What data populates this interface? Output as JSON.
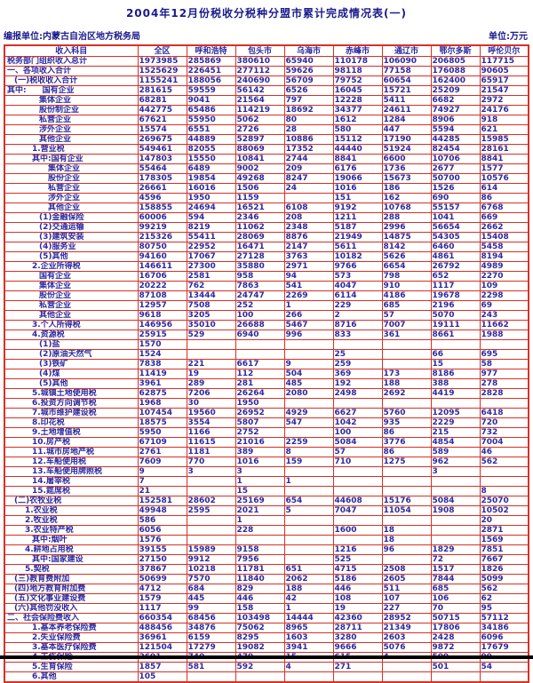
{
  "header": {
    "title": "2004年12月份税收分税种分盟市累计完成情况表(一)",
    "reporting_unit": "编报单位:内蒙古自治区地方税务局",
    "unit_note": "单位:万元"
  },
  "colors": {
    "grid_border": "#d93025",
    "text": "#2b2ba0",
    "title_text": "#1a1a8c",
    "background": "#ffffff"
  },
  "table": {
    "columns": [
      "收入科目",
      "全区",
      "呼和浩特",
      "包头市",
      "乌海市",
      "赤峰市",
      "通辽市",
      "鄂尔多斯",
      "呼伦贝尔"
    ],
    "rows": [
      {
        "i": 0,
        "t": "税务部门组织收入总计",
        "v": [
          1973985,
          285869,
          380610,
          65940,
          110178,
          106090,
          206805,
          117715
        ]
      },
      {
        "i": 0,
        "t": "一、各项收入合计",
        "v": [
          1525629,
          226451,
          277112,
          59626,
          98118,
          77158,
          176088,
          90605
        ]
      },
      {
        "i": 1,
        "t": "(一)税收收入合计",
        "v": [
          1155241,
          188056,
          240690,
          56709,
          79752,
          60654,
          162400,
          65917
        ]
      },
      {
        "i": 0,
        "t": "其中:　　国有企业",
        "v": [
          281615,
          59559,
          56142,
          6526,
          16045,
          15721,
          25209,
          21547
        ]
      },
      {
        "i": 4,
        "t": "集体企业",
        "v": [
          68281,
          9041,
          21564,
          797,
          12228,
          5411,
          6682,
          2972
        ]
      },
      {
        "i": 4,
        "t": "股份制企业",
        "v": [
          442775,
          65486,
          114219,
          18692,
          34377,
          24611,
          74927,
          24176
        ]
      },
      {
        "i": 4,
        "t": "私营企业",
        "v": [
          67621,
          55950,
          5062,
          80,
          1612,
          1284,
          8906,
          918
        ]
      },
      {
        "i": 4,
        "t": "涉外企业",
        "v": [
          15574,
          6551,
          2726,
          28,
          580,
          447,
          5594,
          621
        ]
      },
      {
        "i": 4,
        "t": "其他企业",
        "v": [
          269675,
          44889,
          52897,
          10886,
          15112,
          17190,
          44285,
          15985
        ]
      },
      {
        "i": 3,
        "t": "1.营业税",
        "v": [
          549461,
          82055,
          88069,
          17352,
          44440,
          51924,
          82454,
          28161
        ]
      },
      {
        "i": 3,
        "t": "其中:国有企业",
        "v": [
          147803,
          15550,
          10841,
          2744,
          8841,
          6600,
          10706,
          8841
        ]
      },
      {
        "i": 5,
        "t": "集体企业",
        "v": [
          55464,
          6489,
          9002,
          209,
          6176,
          1736,
          2677,
          1577
        ]
      },
      {
        "i": 5,
        "t": "股份企业",
        "v": [
          178305,
          19854,
          49268,
          8247,
          19066,
          15673,
          50700,
          10576
        ]
      },
      {
        "i": 5,
        "t": "私营企业",
        "v": [
          26661,
          16016,
          1506,
          24,
          1016,
          186,
          1526,
          614
        ]
      },
      {
        "i": 5,
        "t": "涉外企业",
        "v": [
          4596,
          1950,
          1159,
          "",
          151,
          162,
          690,
          86
        ]
      },
      {
        "i": 5,
        "t": "其他企业",
        "v": [
          158855,
          24694,
          16521,
          6108,
          9192,
          10768,
          55157,
          6768
        ]
      },
      {
        "i": 4,
        "t": "(1)金融保险",
        "v": [
          60006,
          594,
          2346,
          208,
          1211,
          288,
          1041,
          669
        ]
      },
      {
        "i": 4,
        "t": "(2)交通运输",
        "v": [
          99219,
          8219,
          11062,
          2348,
          5187,
          2996,
          56654,
          2662
        ]
      },
      {
        "i": 4,
        "t": "(3)建筑安装",
        "v": [
          215326,
          55411,
          28069,
          8876,
          21949,
          14875,
          54305,
          15408
        ]
      },
      {
        "i": 4,
        "t": "(4)服务业",
        "v": [
          80750,
          22952,
          16471,
          2147,
          5611,
          8142,
          6460,
          5458
        ]
      },
      {
        "i": 4,
        "t": "(5)其他",
        "v": [
          94160,
          17067,
          27128,
          3763,
          10182,
          5626,
          4861,
          8194
        ]
      },
      {
        "i": 3,
        "t": "2.企业所得税",
        "v": [
          146611,
          27300,
          35880,
          2971,
          9766,
          6654,
          26792,
          4989
        ]
      },
      {
        "i": 4,
        "t": "国有企业",
        "v": [
          16706,
          2581,
          958,
          94,
          573,
          798,
          652,
          2270
        ]
      },
      {
        "i": 4,
        "t": "集体企业",
        "v": [
          20222,
          762,
          7863,
          541,
          4047,
          910,
          1117,
          109
        ]
      },
      {
        "i": 4,
        "t": "股份企业",
        "v": [
          87108,
          13444,
          24747,
          2269,
          6114,
          4186,
          19678,
          2298
        ]
      },
      {
        "i": 4,
        "t": "私营企业",
        "v": [
          12957,
          7508,
          252,
          1,
          229,
          685,
          2196,
          69
        ]
      },
      {
        "i": 4,
        "t": "其他企业",
        "v": [
          9618,
          3205,
          100,
          266,
          2,
          57,
          5070,
          243
        ]
      },
      {
        "i": 3,
        "t": "3.个人所得税",
        "v": [
          146956,
          35010,
          26688,
          5467,
          8716,
          7007,
          19111,
          11662
        ]
      },
      {
        "i": 3,
        "t": "4.资源税",
        "v": [
          25915,
          529,
          6940,
          996,
          833,
          361,
          8661,
          1988
        ]
      },
      {
        "i": 4,
        "t": "(1)盐",
        "v": [
          1570,
          "",
          "",
          "",
          "",
          "",
          "",
          ""
        ]
      },
      {
        "i": 4,
        "t": "(2)原油天然气",
        "v": [
          1524,
          "",
          "",
          "",
          25,
          "",
          66,
          695
        ]
      },
      {
        "i": 4,
        "t": "(3)铁矿",
        "v": [
          7838,
          221,
          6617,
          9,
          259,
          "",
          15,
          58
        ]
      },
      {
        "i": 4,
        "t": "(4)煤",
        "v": [
          11419,
          19,
          112,
          504,
          369,
          173,
          8186,
          977
        ]
      },
      {
        "i": 4,
        "t": "(5)其他",
        "v": [
          3961,
          289,
          281,
          485,
          192,
          188,
          388,
          278
        ]
      },
      {
        "i": 3,
        "t": "5.城镇土地使用税",
        "v": [
          62875,
          7206,
          26264,
          2080,
          2498,
          2692,
          4419,
          2828
        ]
      },
      {
        "i": 3,
        "t": "6.投资方向调节税",
        "v": [
          1968,
          30,
          1950,
          "",
          "",
          "",
          "",
          ""
        ]
      },
      {
        "i": 3,
        "t": "7.城市维护建设税",
        "v": [
          107454,
          19560,
          26952,
          4929,
          6627,
          5760,
          12095,
          6418
        ]
      },
      {
        "i": 3,
        "t": "8.印花税",
        "v": [
          18575,
          3554,
          5807,
          547,
          1042,
          935,
          2229,
          720
        ]
      },
      {
        "i": 3,
        "t": "9.土地增值税",
        "v": [
          5950,
          1166,
          2752,
          "",
          100,
          86,
          215,
          732
        ]
      },
      {
        "i": 3,
        "t": "10.房产税",
        "v": [
          67109,
          11615,
          21016,
          2259,
          5084,
          3776,
          4854,
          7004
        ]
      },
      {
        "i": 3,
        "t": "11.城市房地产税",
        "v": [
          2761,
          1181,
          389,
          8,
          57,
          86,
          589,
          46
        ]
      },
      {
        "i": 3,
        "t": "12.车船使用税",
        "v": [
          7609,
          770,
          1016,
          159,
          710,
          1275,
          962,
          562
        ]
      },
      {
        "i": 3,
        "t": "13.车船使用牌照税",
        "v": [
          9,
          3,
          3,
          "",
          "",
          "",
          3,
          ""
        ]
      },
      {
        "i": 3,
        "t": "14.屠宰税",
        "v": [
          7,
          "",
          1,
          1,
          "",
          "",
          "",
          ""
        ]
      },
      {
        "i": 3,
        "t": "15.筵席税",
        "v": [
          21,
          "",
          15,
          "",
          "",
          "",
          "",
          8
        ]
      },
      {
        "i": 1,
        "t": "(二)农牧业税",
        "v": [
          152581,
          28602,
          25169,
          654,
          44608,
          15176,
          5084,
          25070
        ]
      },
      {
        "i": 2,
        "t": "1.农业税",
        "v": [
          49948,
          2595,
          2021,
          5,
          7047,
          11054,
          1908,
          10502
        ]
      },
      {
        "i": 2,
        "t": "2.牧业税",
        "v": [
          586,
          "",
          1,
          "",
          "",
          "",
          "",
          20
        ]
      },
      {
        "i": 2,
        "t": "3.农业特产税",
        "v": [
          6056,
          "",
          228,
          "",
          1600,
          18,
          "",
          2871
        ]
      },
      {
        "i": 3,
        "t": "其中:烟叶",
        "v": [
          1576,
          "",
          "",
          "",
          "",
          18,
          "",
          1569
        ]
      },
      {
        "i": 2,
        "t": "4.耕地占用税",
        "v": [
          39155,
          15989,
          9158,
          "",
          1216,
          96,
          1829,
          7851
        ]
      },
      {
        "i": 3,
        "t": "其中:国家建设",
        "v": [
          27150,
          9912,
          7956,
          "",
          525,
          "",
          72,
          7667
        ]
      },
      {
        "i": 2,
        "t": "5.契税",
        "v": [
          37867,
          10218,
          11781,
          651,
          4715,
          2508,
          1517,
          1826
        ]
      },
      {
        "i": 1,
        "t": "(三)教育费附加",
        "v": [
          50699,
          7570,
          11840,
          2062,
          5186,
          2605,
          7844,
          5099
        ]
      },
      {
        "i": 1,
        "t": "(四)地方教育附加费",
        "v": [
          4712,
          684,
          829,
          188,
          446,
          511,
          685,
          562
        ]
      },
      {
        "i": 1,
        "t": "(五)文化事业建设费",
        "v": [
          1579,
          445,
          446,
          42,
          108,
          107,
          106,
          62
        ]
      },
      {
        "i": 1,
        "t": "(六)其他罚没收入",
        "v": [
          1117,
          99,
          158,
          1,
          19,
          227,
          70,
          95
        ]
      },
      {
        "i": 0,
        "t": "二、社会保险费收入",
        "v": [
          660354,
          68456,
          103498,
          14444,
          42360,
          28952,
          50715,
          57112
        ]
      },
      {
        "i": 3,
        "t": "1.基本养老保险费",
        "v": [
          488456,
          34876,
          75062,
          8965,
          28711,
          21349,
          17806,
          34186
        ]
      },
      {
        "i": 3,
        "t": "2.失业保险费",
        "v": [
          36961,
          6159,
          8295,
          1603,
          3280,
          2603,
          2428,
          6096
        ]
      },
      {
        "i": 3,
        "t": "3.基本医疗保险费",
        "v": [
          121504,
          17279,
          19082,
          3941,
          9666,
          5076,
          9872,
          17679
        ]
      },
      {
        "i": 3,
        "t": "4.工伤保险",
        "v": [
          2691,
          740,
          479,
          15,
          615,
          4,
          509,
          99
        ]
      },
      {
        "i": 3,
        "t": "5.生育保险",
        "v": [
          1857,
          581,
          592,
          4,
          271,
          "",
          501,
          54
        ]
      },
      {
        "i": 3,
        "t": "6.其他",
        "v": [
          105,
          "",
          "",
          "",
          "",
          "",
          "",
          ""
        ]
      }
    ]
  }
}
